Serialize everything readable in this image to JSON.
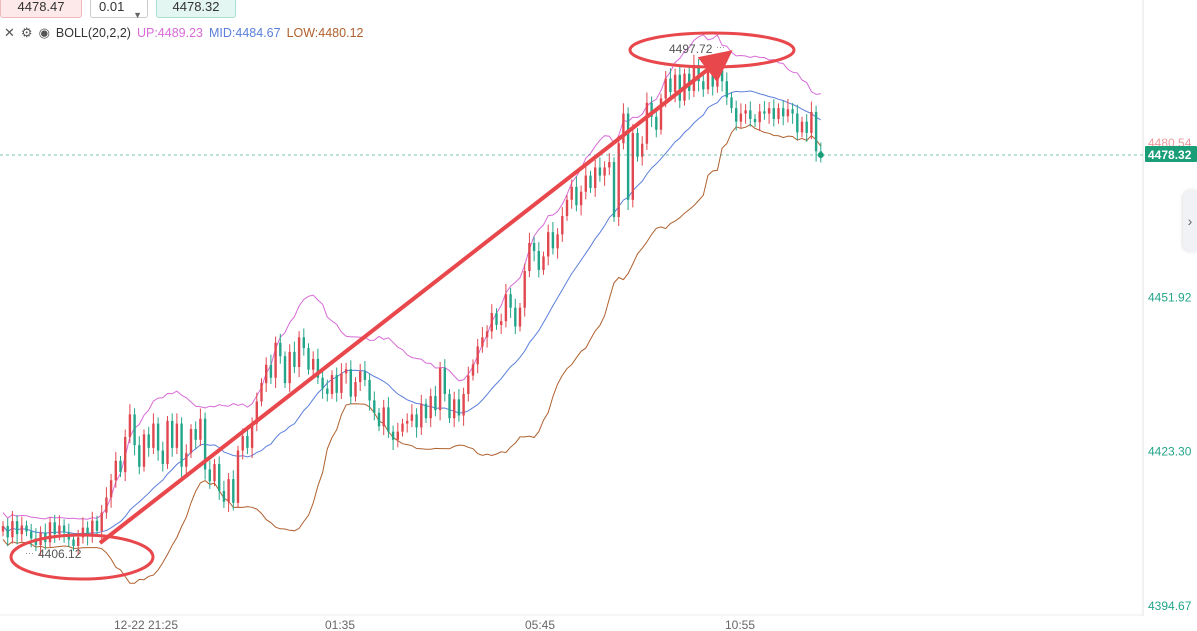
{
  "order_panel": {
    "sell_price": "4478.47",
    "quantity": "0.01",
    "buy_price": "4478.32"
  },
  "indicator": {
    "name": "BOLL(20,2,2)",
    "up_label": "UP:4489.23",
    "mid_label": "MID:4484.67",
    "low_label": "LOW:4480.12"
  },
  "colors": {
    "up_candle": "#e0474e",
    "down_candle": "#23a58a",
    "boll_up": "#d86bd8",
    "boll_mid": "#5b7fdb",
    "boll_low": "#b0602e",
    "annotation": "#e8474c",
    "price_tag": "#1a9e77"
  },
  "chart_data": {
    "type": "candlestick",
    "y_ticks": [
      "4480.54",
      "4451.92",
      "4423.30",
      "4394.67"
    ],
    "y_tick_values": [
      4480.54,
      4451.92,
      4423.3,
      4394.67
    ],
    "x_ticks": [
      "12-22 21:25",
      "01:35",
      "05:45",
      "10:55"
    ],
    "current_price_label": "4478.32",
    "current_price": 4478.32,
    "high_annotation": "4497.72",
    "low_annotation": "4406.12",
    "candle_closes": [
      4409.5,
      4407.4,
      4410.4,
      4408.0,
      4409.6,
      4408.5,
      4407.2,
      4406.0,
      4408.3,
      4406.5,
      4410.2,
      4408.0,
      4409.6,
      4408.3,
      4407.0,
      4405.8,
      4407.4,
      4409.2,
      4407.8,
      4410.5,
      4408.6,
      4412.0,
      4414.8,
      4418.0,
      4421.6,
      4419.5,
      4426.0,
      4430.2,
      4424.5,
      4420.5,
      4426.5,
      4424.0,
      4428.5,
      4423.5,
      4421.0,
      4429.0,
      4424.0,
      4428.5,
      4420.5,
      4423.0,
      4427.5,
      4425.5,
      4429.4,
      4420.0,
      4417.8,
      4421.0,
      4416.0,
      4414.0,
      4418.2,
      4413.8,
      4423.5,
      4426.2,
      4424.0,
      4428.5,
      4432.6,
      4436.0,
      4439.4,
      4437.0,
      4443.5,
      4441.0,
      4436.0,
      4441.8,
      4439.0,
      4444.5,
      4442.5,
      4438.5,
      4440.5,
      4437.0,
      4435.0,
      4434.0,
      4437.5,
      4434.2,
      4437.8,
      4438.6,
      4433.5,
      4436.2,
      4438.2,
      4436.6,
      4432.8,
      4430.5,
      4428.0,
      4431.5,
      4427.0,
      4425.5,
      4427.0,
      4428.5,
      4429.0,
      4430.2,
      4427.8,
      4432.2,
      4429.5,
      4433.6,
      4431.0,
      4438.8,
      4434.0,
      4429.5,
      4433.0,
      4430.0,
      4434.0,
      4437.4,
      4439.5,
      4442.8,
      4444.5,
      4445.6,
      4449.0,
      4446.8,
      4447.5,
      4452.5,
      4450.0,
      4446.5,
      4450.0,
      4456.8,
      4462.0,
      4460.5,
      4457.0,
      4459.5,
      4464.0,
      4461.0,
      4463.6,
      4467.0,
      4470.0,
      4472.4,
      4469.0,
      4471.5,
      4474.5,
      4472.2,
      4476.0,
      4474.5,
      4476.0,
      4477.0,
      4466.8,
      4480.5,
      4486.0,
      4470.0,
      4482.4,
      4478.0,
      4480.4,
      4488.0,
      4485.4,
      4483.0,
      4488.8,
      4492.5,
      4490.0,
      4493.2,
      4488.4,
      4493.4,
      4490.2,
      4495.0,
      4492.0,
      4490.5,
      4494.4,
      4491.0,
      4494.0,
      4492.0,
      4489.0,
      4487.0,
      4484.5,
      4486.0,
      4486.6,
      4485.0,
      4484.4,
      4486.4,
      4486.0,
      4487.0,
      4485.0,
      4487.0,
      4485.5,
      4486.8,
      4486.0,
      4482.5,
      4484.5,
      4482.4,
      4486.3,
      4479.0,
      4478.32
    ]
  }
}
